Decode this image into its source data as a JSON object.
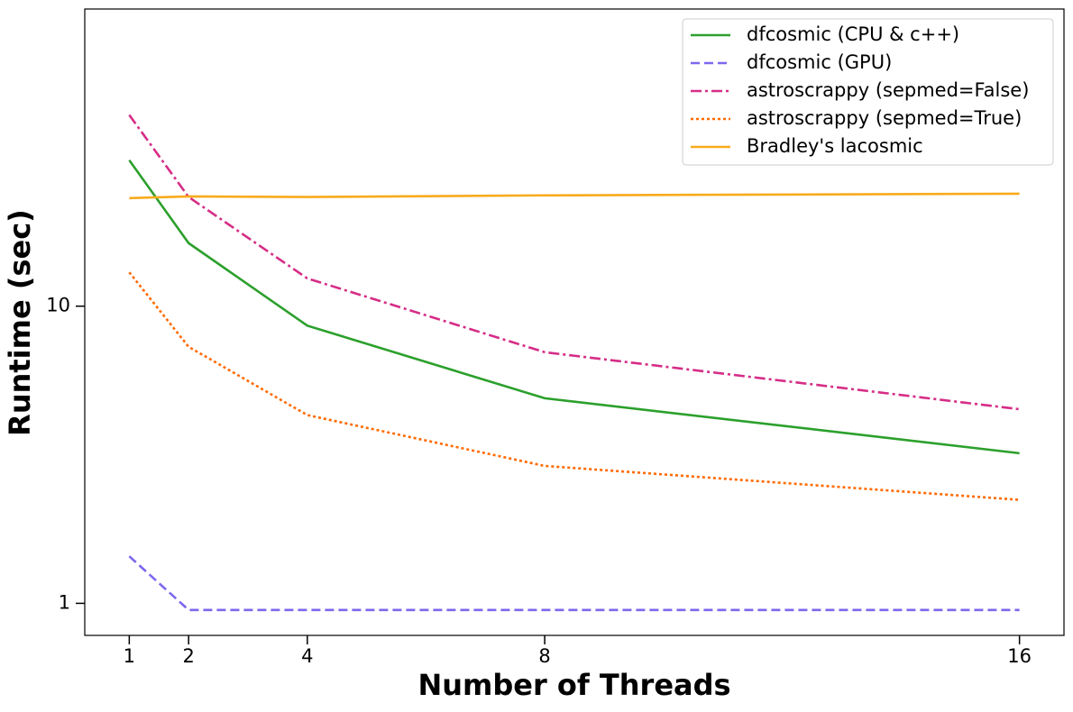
{
  "chart_data": {
    "type": "line",
    "xlabel": "Number of Threads",
    "ylabel": "Runtime (sec)",
    "x": [
      1,
      2,
      4,
      8,
      16
    ],
    "xlim": [
      0.25,
      16.75
    ],
    "xticks": [
      1,
      2,
      4,
      8,
      16
    ],
    "ylim": [
      0.78,
      100
    ],
    "yticks": [
      1,
      10
    ],
    "yscale": "log",
    "legend": "upper right",
    "series": [
      {
        "name": "dfcosmic (CPU & c++)",
        "color": "#2ca02c",
        "linestyle": "solid",
        "values": [
          31,
          16.3,
          8.6,
          4.9,
          3.2
        ]
      },
      {
        "name": "dfcosmic (GPU)",
        "color": "#7b68ee",
        "linestyle": "dashed",
        "values": [
          1.44,
          0.95,
          0.95,
          0.95,
          0.95
        ]
      },
      {
        "name": "astroscrappy (sepmed=False)",
        "color": "#d62d87",
        "linestyle": "dashdot",
        "values": [
          44,
          23.3,
          12.4,
          7.0,
          4.5
        ]
      },
      {
        "name": "astroscrappy (sepmed=True)",
        "color": "#ff6a00",
        "linestyle": "dotted",
        "values": [
          13,
          7.3,
          4.3,
          2.9,
          2.23
        ]
      },
      {
        "name": "Bradley's lacosmic",
        "color": "#f8ab1d",
        "linestyle": "solid",
        "values": [
          23.1,
          23.4,
          23.3,
          23.6,
          23.9
        ]
      }
    ]
  }
}
